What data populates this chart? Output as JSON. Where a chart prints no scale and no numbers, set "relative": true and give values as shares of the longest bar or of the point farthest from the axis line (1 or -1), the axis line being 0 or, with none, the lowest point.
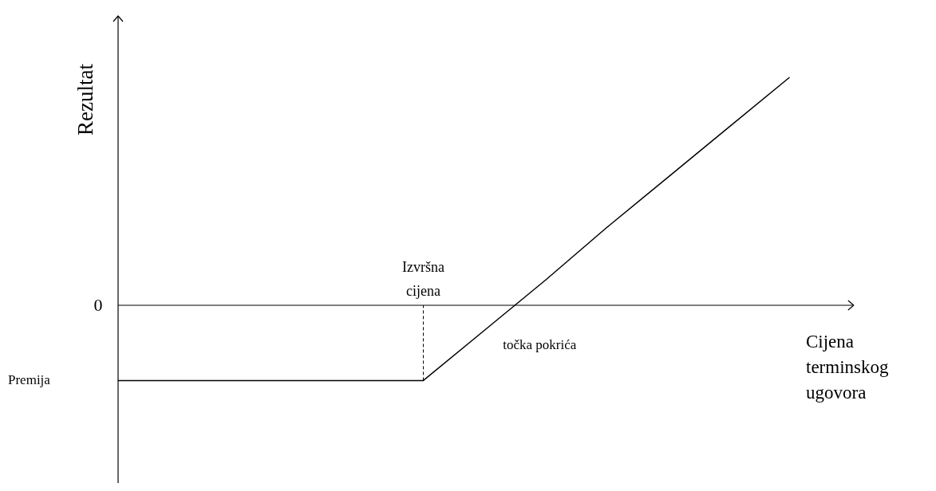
{
  "chart_data": {
    "type": "line",
    "relative": true,
    "xlabel": "Cijena terminskog ugovora",
    "ylabel": "Rezultat",
    "categories": [
      null,
      null,
      null,
      null,
      null,
      null,
      null,
      null,
      null,
      null,
      null,
      null
    ],
    "values": [
      -0.33,
      -0.33,
      -0.33,
      -0.33,
      -0.33,
      -0.33,
      -0.11,
      0.11,
      0.34,
      0.56,
      0.78,
      1.0
    ],
    "color": "#000000",
    "line_style": "solid",
    "marker": "none",
    "annotations": [
      "0",
      "Premija",
      "Izvršna cijena",
      "točka pokrića"
    ]
  }
}
